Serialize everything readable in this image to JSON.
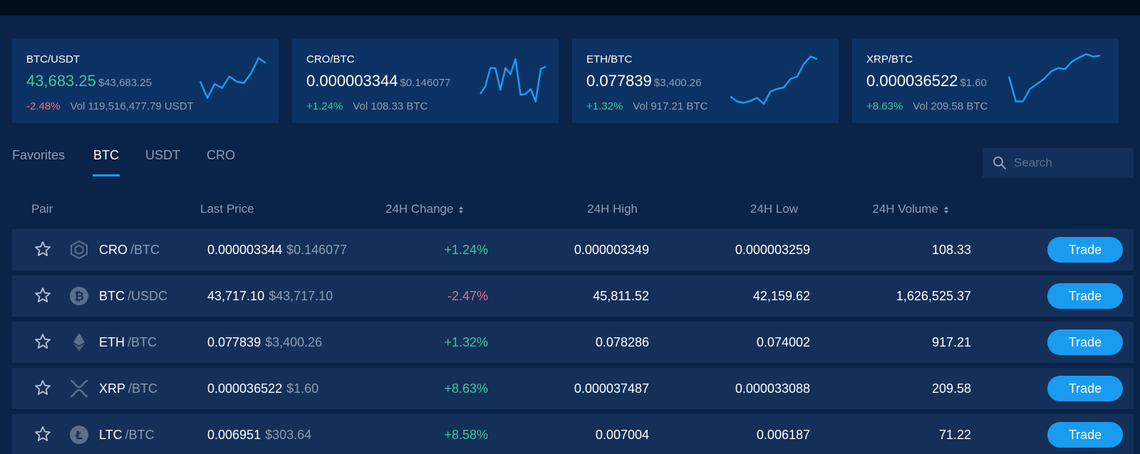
{
  "colors": {
    "background": "#0a2349",
    "card": "#0c3263",
    "row": "#143059",
    "accent": "#1a9bf0",
    "positive": "#3fc6a1",
    "negative": "#ee6b8a",
    "muted": "#8c9db4"
  },
  "tickers": [
    {
      "pair": "BTC/USDT",
      "price": "43,683.25",
      "usd": "$43,683.25",
      "change": "-2.48%",
      "volume": "Vol 119,516,477.79 USDT",
      "trend": [
        0.45,
        0.12,
        0.4,
        0.32,
        0.55,
        0.45,
        0.42,
        0.62,
        0.92,
        0.82
      ]
    },
    {
      "pair": "CRO/BTC",
      "price": "0.000003344",
      "usd": "$0.146077",
      "change": "+1.24%",
      "volume": "Vol 108.33 BTC",
      "trend": [
        0.2,
        0.35,
        0.72,
        0.72,
        0.28,
        0.72,
        0.6,
        0.9,
        0.18,
        0.2,
        0.3,
        0.05,
        0.7,
        0.75
      ]
    },
    {
      "pair": "ETH/BTC",
      "price": "0.077839",
      "usd": "$3,400.26",
      "change": "+1.32%",
      "volume": "Vol 917.21 BTC",
      "trend": [
        0.15,
        0.05,
        0.02,
        0.06,
        0.12,
        0.0,
        0.25,
        0.3,
        0.33,
        0.5,
        0.55,
        0.8,
        0.95,
        0.9
      ]
    },
    {
      "pair": "XRP/BTC",
      "price": "0.000036522",
      "usd": "$1.60",
      "change": "+8.63%",
      "volume": "Vol 209.58 BTC",
      "trend": [
        0.55,
        0.05,
        0.05,
        0.3,
        0.4,
        0.5,
        0.65,
        0.72,
        0.7,
        0.85,
        0.93,
        1.0,
        0.95,
        0.97
      ]
    }
  ],
  "tabs": [
    "Favorites",
    "BTC",
    "USDT",
    "CRO"
  ],
  "search": {
    "placeholder": "Search"
  },
  "columns": {
    "pair": "Pair",
    "last_price": "Last Price",
    "change": "24H Change",
    "high": "24H High",
    "low": "24H Low",
    "volume": "24H Volume"
  },
  "rows": [
    {
      "icon": "cro-coin-icon",
      "base": "CRO",
      "quote": "/BTC",
      "price": "0.000003344",
      "usd": "$0.146077",
      "change": "+1.24%",
      "high": "0.000003349",
      "low": "0.000003259",
      "volume": "108.33",
      "trade": "Trade"
    },
    {
      "icon": "btc-coin-icon",
      "base": "BTC",
      "quote": "/USDC",
      "price": "43,717.10",
      "usd": "$43,717.10",
      "change": "-2.47%",
      "high": "45,811.52",
      "low": "42,159.62",
      "volume": "1,626,525.37",
      "trade": "Trade"
    },
    {
      "icon": "eth-coin-icon",
      "base": "ETH",
      "quote": "/BTC",
      "price": "0.077839",
      "usd": "$3,400.26",
      "change": "+1.32%",
      "high": "0.078286",
      "low": "0.074002",
      "volume": "917.21",
      "trade": "Trade"
    },
    {
      "icon": "xrp-coin-icon",
      "base": "XRP",
      "quote": "/BTC",
      "price": "0.000036522",
      "usd": "$1.60",
      "change": "+8.63%",
      "high": "0.000037487",
      "low": "0.000033088",
      "volume": "209.58",
      "trade": "Trade"
    },
    {
      "icon": "ltc-coin-icon",
      "base": "LTC",
      "quote": "/BTC",
      "price": "0.006951",
      "usd": "$303.64",
      "change": "+8.58%",
      "high": "0.007004",
      "low": "0.006187",
      "volume": "71.22",
      "trade": "Trade"
    }
  ]
}
